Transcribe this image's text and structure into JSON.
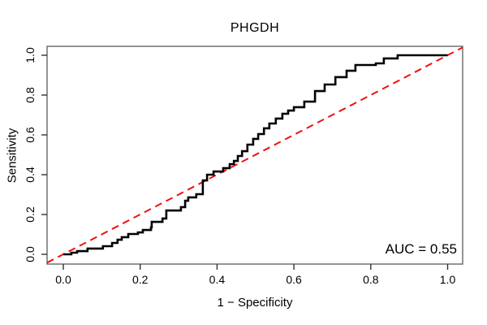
{
  "figure": {
    "title": "PHGDH",
    "xlabel": "1 − Specificity",
    "ylabel": "Sensitivity",
    "auc_label": "AUC = 0.55"
  },
  "colors": {
    "curve": "#000000",
    "diagonal": "#ee1111",
    "box": "#666666",
    "tick": "#333333",
    "text": "#000000",
    "background": "#ffffff"
  },
  "chart_data": {
    "type": "line",
    "subtype": "roc-step-curve",
    "title": "PHGDH",
    "xlabel": "1 − Specificity",
    "ylabel": "Sensitivity",
    "xlim": [
      0,
      1
    ],
    "ylim": [
      0,
      1
    ],
    "grid": false,
    "legend": "none",
    "auc": 0.55,
    "annotations": [
      {
        "text": "AUC = 0.55",
        "position": "bottom-right"
      }
    ],
    "x_ticks": [
      0.0,
      0.2,
      0.4,
      0.6,
      0.8,
      1.0
    ],
    "y_ticks": [
      0.0,
      0.2,
      0.4,
      0.6,
      0.8,
      1.0
    ],
    "x_tick_labels": [
      "0.0",
      "0.2",
      "0.4",
      "0.6",
      "0.8",
      "1.0"
    ],
    "y_tick_labels": [
      "0.0",
      "0.2",
      "0.4",
      "0.6",
      "0.8",
      "1.0"
    ],
    "series": [
      {
        "name": "ROC curve",
        "style": "step",
        "color": "#000000",
        "points": [
          [
            0.0,
            0.0
          ],
          [
            0.021,
            0.008
          ],
          [
            0.036,
            0.016
          ],
          [
            0.063,
            0.029
          ],
          [
            0.103,
            0.041
          ],
          [
            0.127,
            0.057
          ],
          [
            0.141,
            0.073
          ],
          [
            0.152,
            0.086
          ],
          [
            0.169,
            0.102
          ],
          [
            0.194,
            0.11
          ],
          [
            0.207,
            0.122
          ],
          [
            0.228,
            0.135
          ],
          [
            0.23,
            0.163
          ],
          [
            0.258,
            0.18
          ],
          [
            0.268,
            0.22
          ],
          [
            0.306,
            0.237
          ],
          [
            0.317,
            0.269
          ],
          [
            0.325,
            0.286
          ],
          [
            0.346,
            0.302
          ],
          [
            0.363,
            0.371
          ],
          [
            0.374,
            0.4
          ],
          [
            0.391,
            0.416
          ],
          [
            0.416,
            0.433
          ],
          [
            0.433,
            0.453
          ],
          [
            0.444,
            0.469
          ],
          [
            0.454,
            0.494
          ],
          [
            0.465,
            0.518
          ],
          [
            0.479,
            0.551
          ],
          [
            0.494,
            0.58
          ],
          [
            0.507,
            0.604
          ],
          [
            0.522,
            0.633
          ],
          [
            0.536,
            0.657
          ],
          [
            0.553,
            0.682
          ],
          [
            0.57,
            0.706
          ],
          [
            0.585,
            0.722
          ],
          [
            0.6,
            0.739
          ],
          [
            0.627,
            0.767
          ],
          [
            0.655,
            0.82
          ],
          [
            0.68,
            0.853
          ],
          [
            0.708,
            0.89
          ],
          [
            0.737,
            0.922
          ],
          [
            0.76,
            0.951
          ],
          [
            0.813,
            0.959
          ],
          [
            0.834,
            0.984
          ],
          [
            0.853,
            0.984
          ],
          [
            0.87,
            1.0
          ],
          [
            1.0,
            1.0
          ]
        ]
      },
      {
        "name": "Reference diagonal",
        "style": "dashed-line",
        "color": "#ee1111",
        "points": [
          [
            0,
            0
          ],
          [
            1,
            1
          ]
        ]
      }
    ]
  }
}
